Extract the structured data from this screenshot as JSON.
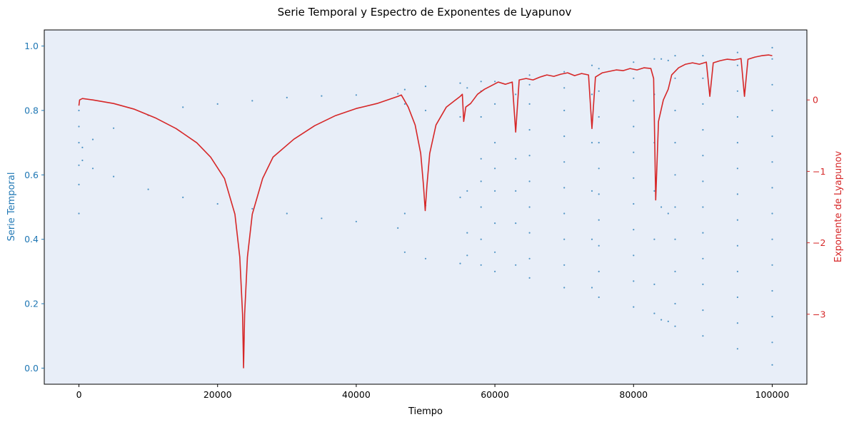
{
  "chart_data": {
    "type": "scatter",
    "title": "Serie Temporal y Espectro de Exponentes de Lyapunov",
    "xlabel": "Tiempo",
    "ylabel_left": "Serie Temporal",
    "ylabel_right": "Exponente de Lyapunov",
    "xlim": [
      -5000,
      105000
    ],
    "ylim_left": [
      -0.05,
      1.05
    ],
    "ylim_right": [
      -3.98,
      0.98
    ],
    "x_ticks": [
      0,
      20000,
      40000,
      60000,
      80000,
      100000
    ],
    "x_tick_labels": [
      "0",
      "20000",
      "40000",
      "60000",
      "80000",
      "100000"
    ],
    "y_left_ticks": [
      0.0,
      0.2,
      0.4,
      0.6,
      0.8,
      1.0
    ],
    "y_left_tick_labels": [
      "0.0",
      "0.2",
      "0.4",
      "0.6",
      "0.8",
      "1.0"
    ],
    "y_right_ticks": [
      -3,
      -2,
      -1,
      0
    ],
    "y_right_tick_labels": [
      "−3",
      "−2",
      "−1",
      "0"
    ],
    "grid": false,
    "legend": "none",
    "background_color": "#e8eef8",
    "series": [
      {
        "role": "time_series_scatter",
        "color": "#1f77b4",
        "points": [
          [
            0,
            0.48
          ],
          [
            0,
            0.57
          ],
          [
            0,
            0.63
          ],
          [
            0,
            0.7
          ],
          [
            0,
            0.75
          ],
          [
            0,
            0.8
          ],
          [
            500,
            0.645
          ],
          [
            500,
            0.685
          ],
          [
            2000,
            0.62
          ],
          [
            2000,
            0.71
          ],
          [
            5000,
            0.595
          ],
          [
            5000,
            0.745
          ],
          [
            10000,
            0.555
          ],
          [
            10000,
            0.785
          ],
          [
            15000,
            0.53
          ],
          [
            15000,
            0.81
          ],
          [
            20000,
            0.51
          ],
          [
            20000,
            0.82
          ],
          [
            25000,
            0.495
          ],
          [
            25000,
            0.83
          ],
          [
            30000,
            0.48
          ],
          [
            30000,
            0.84
          ],
          [
            35000,
            0.465
          ],
          [
            35000,
            0.845
          ],
          [
            40000,
            0.455
          ],
          [
            40000,
            0.848
          ],
          [
            46000,
            0.435
          ],
          [
            46000,
            0.852
          ],
          [
            47000,
            0.36
          ],
          [
            47000,
            0.48
          ],
          [
            47000,
            0.82
          ],
          [
            47000,
            0.865
          ],
          [
            50000,
            0.34
          ],
          [
            50000,
            0.505
          ],
          [
            50000,
            0.8
          ],
          [
            50000,
            0.875
          ],
          [
            55000,
            0.325
          ],
          [
            55000,
            0.53
          ],
          [
            55000,
            0.78
          ],
          [
            55000,
            0.885
          ],
          [
            56000,
            0.35
          ],
          [
            56000,
            0.42
          ],
          [
            56000,
            0.55
          ],
          [
            56000,
            0.87
          ],
          [
            58000,
            0.32
          ],
          [
            58000,
            0.4
          ],
          [
            58000,
            0.5
          ],
          [
            58000,
            0.58
          ],
          [
            58000,
            0.65
          ],
          [
            58000,
            0.78
          ],
          [
            58000,
            0.86
          ],
          [
            58000,
            0.89
          ],
          [
            60000,
            0.3
          ],
          [
            60000,
            0.36
          ],
          [
            60000,
            0.45
          ],
          [
            60000,
            0.55
          ],
          [
            60000,
            0.62
          ],
          [
            60000,
            0.7
          ],
          [
            60000,
            0.82
          ],
          [
            60000,
            0.89
          ],
          [
            63000,
            0.32
          ],
          [
            63000,
            0.45
          ],
          [
            63000,
            0.55
          ],
          [
            63000,
            0.65
          ],
          [
            63000,
            0.75
          ],
          [
            63000,
            0.85
          ],
          [
            65000,
            0.28
          ],
          [
            65000,
            0.34
          ],
          [
            65000,
            0.42
          ],
          [
            65000,
            0.5
          ],
          [
            65000,
            0.58
          ],
          [
            65000,
            0.66
          ],
          [
            65000,
            0.74
          ],
          [
            65000,
            0.82
          ],
          [
            65000,
            0.88
          ],
          [
            65000,
            0.91
          ],
          [
            70000,
            0.25
          ],
          [
            70000,
            0.32
          ],
          [
            70000,
            0.4
          ],
          [
            70000,
            0.48
          ],
          [
            70000,
            0.56
          ],
          [
            70000,
            0.64
          ],
          [
            70000,
            0.72
          ],
          [
            70000,
            0.8
          ],
          [
            70000,
            0.87
          ],
          [
            70000,
            0.92
          ],
          [
            74000,
            0.25
          ],
          [
            74000,
            0.4
          ],
          [
            74000,
            0.55
          ],
          [
            74000,
            0.7
          ],
          [
            74000,
            0.85
          ],
          [
            74000,
            0.94
          ],
          [
            75000,
            0.22
          ],
          [
            75000,
            0.3
          ],
          [
            75000,
            0.38
          ],
          [
            75000,
            0.46
          ],
          [
            75000,
            0.54
          ],
          [
            75000,
            0.62
          ],
          [
            75000,
            0.7
          ],
          [
            75000,
            0.78
          ],
          [
            75000,
            0.86
          ],
          [
            75000,
            0.93
          ],
          [
            80000,
            0.19
          ],
          [
            80000,
            0.27
          ],
          [
            80000,
            0.35
          ],
          [
            80000,
            0.43
          ],
          [
            80000,
            0.51
          ],
          [
            80000,
            0.59
          ],
          [
            80000,
            0.67
          ],
          [
            80000,
            0.75
          ],
          [
            80000,
            0.83
          ],
          [
            80000,
            0.9
          ],
          [
            80000,
            0.95
          ],
          [
            83000,
            0.17
          ],
          [
            83000,
            0.26
          ],
          [
            83000,
            0.4
          ],
          [
            83000,
            0.55
          ],
          [
            83000,
            0.7
          ],
          [
            83000,
            0.85
          ],
          [
            83000,
            0.96
          ],
          [
            84000,
            0.15
          ],
          [
            84000,
            0.5
          ],
          [
            84000,
            0.96
          ],
          [
            85000,
            0.145
          ],
          [
            85000,
            0.48
          ],
          [
            85000,
            0.955
          ],
          [
            86000,
            0.13
          ],
          [
            86000,
            0.2
          ],
          [
            86000,
            0.3
          ],
          [
            86000,
            0.4
          ],
          [
            86000,
            0.5
          ],
          [
            86000,
            0.6
          ],
          [
            86000,
            0.7
          ],
          [
            86000,
            0.8
          ],
          [
            86000,
            0.9
          ],
          [
            86000,
            0.97
          ],
          [
            90000,
            0.1
          ],
          [
            90000,
            0.18
          ],
          [
            90000,
            0.26
          ],
          [
            90000,
            0.34
          ],
          [
            90000,
            0.42
          ],
          [
            90000,
            0.5
          ],
          [
            90000,
            0.58
          ],
          [
            90000,
            0.66
          ],
          [
            90000,
            0.74
          ],
          [
            90000,
            0.82
          ],
          [
            90000,
            0.9
          ],
          [
            90000,
            0.97
          ],
          [
            95000,
            0.06
          ],
          [
            95000,
            0.14
          ],
          [
            95000,
            0.22
          ],
          [
            95000,
            0.3
          ],
          [
            95000,
            0.38
          ],
          [
            95000,
            0.46
          ],
          [
            95000,
            0.54
          ],
          [
            95000,
            0.62
          ],
          [
            95000,
            0.7
          ],
          [
            95000,
            0.78
          ],
          [
            95000,
            0.86
          ],
          [
            95000,
            0.94
          ],
          [
            95000,
            0.98
          ],
          [
            100000,
            0.01
          ],
          [
            100000,
            0.08
          ],
          [
            100000,
            0.16
          ],
          [
            100000,
            0.24
          ],
          [
            100000,
            0.32
          ],
          [
            100000,
            0.4
          ],
          [
            100000,
            0.48
          ],
          [
            100000,
            0.56
          ],
          [
            100000,
            0.64
          ],
          [
            100000,
            0.72
          ],
          [
            100000,
            0.8
          ],
          [
            100000,
            0.88
          ],
          [
            100000,
            0.96
          ],
          [
            100000,
            0.995
          ]
        ]
      },
      {
        "role": "lyapunov_exponent_line",
        "color": "#d62728",
        "points": [
          [
            0,
            -0.08
          ],
          [
            100,
            0.0
          ],
          [
            500,
            0.02
          ],
          [
            2000,
            0.0
          ],
          [
            5000,
            -0.05
          ],
          [
            8000,
            -0.13
          ],
          [
            11000,
            -0.25
          ],
          [
            14000,
            -0.4
          ],
          [
            17000,
            -0.6
          ],
          [
            19000,
            -0.8
          ],
          [
            21000,
            -1.1
          ],
          [
            22500,
            -1.6
          ],
          [
            23200,
            -2.2
          ],
          [
            23600,
            -3.0
          ],
          [
            23750,
            -3.75
          ],
          [
            23900,
            -3.0
          ],
          [
            24300,
            -2.2
          ],
          [
            25000,
            -1.6
          ],
          [
            26500,
            -1.1
          ],
          [
            28000,
            -0.8
          ],
          [
            31000,
            -0.55
          ],
          [
            34000,
            -0.36
          ],
          [
            37000,
            -0.22
          ],
          [
            40000,
            -0.12
          ],
          [
            43000,
            -0.05
          ],
          [
            46000,
            0.05
          ],
          [
            46500,
            0.07
          ],
          [
            46800,
            0.02
          ],
          [
            47500,
            -0.1
          ],
          [
            48500,
            -0.35
          ],
          [
            49300,
            -0.75
          ],
          [
            49700,
            -1.2
          ],
          [
            49950,
            -1.55
          ],
          [
            50200,
            -1.2
          ],
          [
            50600,
            -0.75
          ],
          [
            51500,
            -0.35
          ],
          [
            53000,
            -0.1
          ],
          [
            55000,
            0.05
          ],
          [
            55300,
            0.08
          ],
          [
            55500,
            -0.3
          ],
          [
            55800,
            -0.1
          ],
          [
            56500,
            -0.05
          ],
          [
            57500,
            0.08
          ],
          [
            58500,
            0.15
          ],
          [
            59500,
            0.2
          ],
          [
            60500,
            0.25
          ],
          [
            61500,
            0.22
          ],
          [
            62500,
            0.25
          ],
          [
            63000,
            -0.45
          ],
          [
            63500,
            0.28
          ],
          [
            64500,
            0.3
          ],
          [
            65500,
            0.28
          ],
          [
            66500,
            0.32
          ],
          [
            67500,
            0.35
          ],
          [
            68500,
            0.33
          ],
          [
            69500,
            0.36
          ],
          [
            70500,
            0.38
          ],
          [
            71500,
            0.34
          ],
          [
            72500,
            0.37
          ],
          [
            73500,
            0.35
          ],
          [
            74000,
            -0.4
          ],
          [
            74500,
            0.32
          ],
          [
            75500,
            0.38
          ],
          [
            76500,
            0.4
          ],
          [
            77500,
            0.42
          ],
          [
            78500,
            0.41
          ],
          [
            79500,
            0.44
          ],
          [
            80500,
            0.42
          ],
          [
            81500,
            0.45
          ],
          [
            82500,
            0.44
          ],
          [
            82900,
            0.3
          ],
          [
            83200,
            -1.4
          ],
          [
            83600,
            -0.3
          ],
          [
            84300,
            0.0
          ],
          [
            85000,
            0.15
          ],
          [
            85500,
            0.35
          ],
          [
            86500,
            0.45
          ],
          [
            87500,
            0.5
          ],
          [
            88500,
            0.52
          ],
          [
            89500,
            0.5
          ],
          [
            90500,
            0.53
          ],
          [
            91000,
            0.05
          ],
          [
            91500,
            0.52
          ],
          [
            92500,
            0.55
          ],
          [
            93500,
            0.57
          ],
          [
            94500,
            0.56
          ],
          [
            95500,
            0.58
          ],
          [
            96000,
            0.05
          ],
          [
            96500,
            0.57
          ],
          [
            97500,
            0.6
          ],
          [
            98500,
            0.62
          ],
          [
            99500,
            0.63
          ],
          [
            100000,
            0.62
          ]
        ]
      }
    ]
  }
}
